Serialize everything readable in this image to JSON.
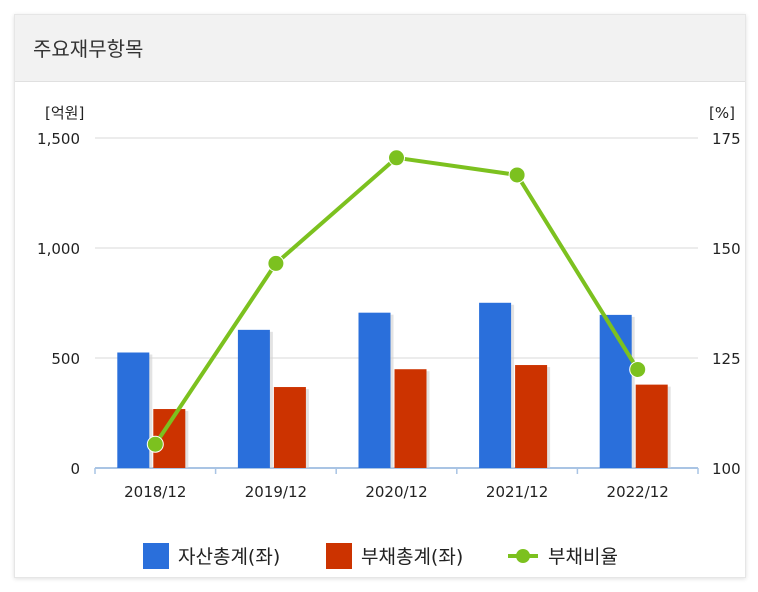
{
  "panel": {
    "title": "주요재무항목"
  },
  "chart_data": {
    "type": "bar",
    "categories": [
      "2018/12",
      "2019/12",
      "2020/12",
      "2021/12",
      "2022/12"
    ],
    "series": [
      {
        "name": "자산총계(좌)",
        "kind": "bar",
        "axis": "left",
        "color": "#2a6fdb",
        "values": [
          525,
          628,
          706,
          751,
          696
        ]
      },
      {
        "name": "부채총계(좌)",
        "kind": "bar",
        "axis": "left",
        "color": "#cc3300",
        "values": [
          268,
          368,
          449,
          468,
          379
        ]
      },
      {
        "name": "부채비율",
        "kind": "line",
        "axis": "right",
        "color": "#7cc11f",
        "values": [
          105.4,
          146.5,
          170.5,
          166.6,
          122.4
        ]
      }
    ],
    "left_axis": {
      "unit": "[억원]",
      "ylim": [
        0,
        1500
      ],
      "ticks": [
        "0",
        "500",
        "1,000",
        "1,500"
      ],
      "tick_values": [
        0,
        500,
        1000,
        1500
      ]
    },
    "right_axis": {
      "unit": "[%]",
      "ylim": [
        100,
        175
      ],
      "ticks": [
        "100",
        "125",
        "150",
        "175"
      ],
      "tick_values": [
        100,
        125,
        150,
        175
      ]
    },
    "grid": true,
    "legend_position": "bottom"
  }
}
